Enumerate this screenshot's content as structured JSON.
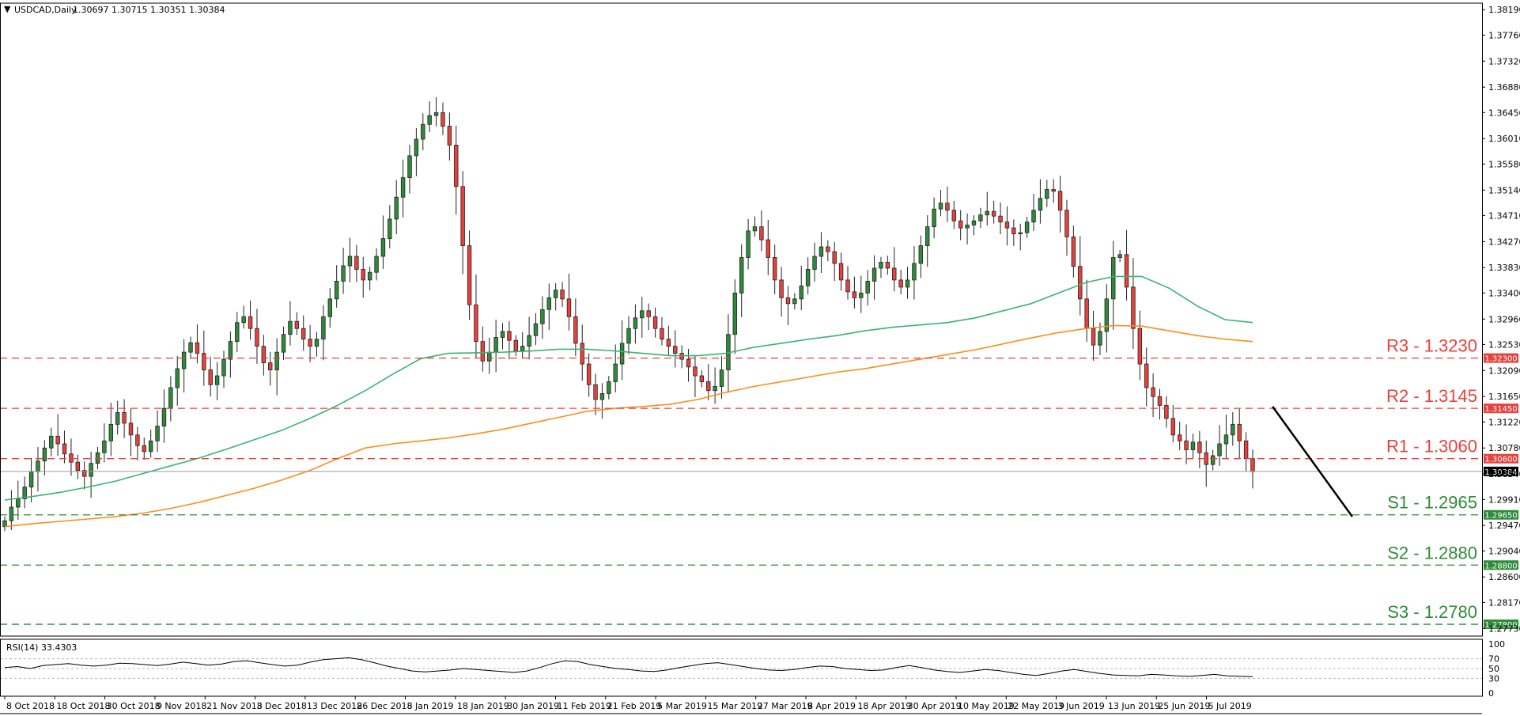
{
  "header": {
    "symbol": "USDCAD,Daily",
    "ohlc": "1.30697 1.30715 1.30351 1.30384"
  },
  "rsi_header": "RSI(14) 33.4303",
  "colors": {
    "bull": "#2e8b3a",
    "bear": "#e8413c",
    "ma_fast": "#3cb371",
    "ma_slow": "#ff8c1a",
    "resistance": "#e8413c",
    "support": "#2e8b3a",
    "trend": "#000000"
  },
  "chart_data": {
    "type": "candlestick",
    "y_range": [
      1.276,
      1.383
    ],
    "y_ticks": [
      "1.38190",
      "1.37760",
      "1.37320",
      "1.36880",
      "1.36450",
      "1.36010",
      "1.35580",
      "1.35140",
      "1.34710",
      "1.34270",
      "1.33830",
      "1.33400",
      "1.32960",
      "1.32530",
      "1.32090",
      "1.31650",
      "1.31220",
      "1.30780",
      "1.30340",
      "1.29910",
      "1.29470",
      "1.29040",
      "1.28600",
      "1.28170",
      "1.27730"
    ],
    "x_labels": [
      "8 Oct 2018",
      "18 Oct 2018",
      "30 Oct 2018",
      "9 Nov 2018",
      "21 Nov 2018",
      "3 Dec 2018",
      "13 Dec 2018",
      "26 Dec 2018",
      "8 Jan 2019",
      "18 Jan 2019",
      "30 Jan 2019",
      "11 Feb 2019",
      "21 Feb 2019",
      "5 Mar 2019",
      "15 Mar 2019",
      "27 Mar 2019",
      "8 Apr 2019",
      "18 Apr 2019",
      "30 Apr 2019",
      "10 May 2019",
      "22 May 2019",
      "3 Jun 2019",
      "13 Jun 2019",
      "25 Jun 2019",
      "5 Jul 2019"
    ],
    "closes": [
      1.2955,
      1.2978,
      1.2992,
      1.3012,
      1.3038,
      1.3056,
      1.3078,
      1.3098,
      1.3085,
      1.3068,
      1.3054,
      1.304,
      1.303,
      1.3052,
      1.307,
      1.309,
      1.3118,
      1.3138,
      1.312,
      1.31,
      1.3082,
      1.3072,
      1.309,
      1.3115,
      1.3145,
      1.318,
      1.3212,
      1.324,
      1.3256,
      1.3238,
      1.321,
      1.3185,
      1.32,
      1.3228,
      1.3258,
      1.329,
      1.33,
      1.328,
      1.325,
      1.3222,
      1.321,
      1.324,
      1.327,
      1.3292,
      1.328,
      1.3262,
      1.325,
      1.3262,
      1.33,
      1.333,
      1.336,
      1.3386,
      1.3402,
      1.338,
      1.3362,
      1.3375,
      1.3402,
      1.3432,
      1.3465,
      1.3502,
      1.3535,
      1.3572,
      1.36,
      1.3625,
      1.364,
      1.3645,
      1.3622,
      1.359,
      1.352,
      1.342,
      1.332,
      1.3258,
      1.3225,
      1.324,
      1.3265,
      1.3275,
      1.326,
      1.3242,
      1.325,
      1.3268,
      1.3288,
      1.3312,
      1.3332,
      1.3345,
      1.333,
      1.33,
      1.3255,
      1.322,
      1.3185,
      1.316,
      1.317,
      1.319,
      1.322,
      1.3255,
      1.328,
      1.3298,
      1.331,
      1.33,
      1.328,
      1.3262,
      1.325,
      1.3238,
      1.3228,
      1.3215,
      1.32,
      1.319,
      1.3175,
      1.3182,
      1.321,
      1.327,
      1.334,
      1.34,
      1.3445,
      1.3452,
      1.343,
      1.34,
      1.3362,
      1.3332,
      1.3322,
      1.333,
      1.3352,
      1.338,
      1.3402,
      1.3418,
      1.341,
      1.339,
      1.3362,
      1.3342,
      1.3332,
      1.334,
      1.336,
      1.3382,
      1.3392,
      1.3382,
      1.3362,
      1.335,
      1.3362,
      1.339,
      1.342,
      1.3452,
      1.3482,
      1.3492,
      1.348,
      1.3462,
      1.345,
      1.3455,
      1.3462,
      1.3472,
      1.3478,
      1.347,
      1.346,
      1.345,
      1.344,
      1.3442,
      1.346,
      1.348,
      1.35,
      1.3515,
      1.3512,
      1.348,
      1.3435,
      1.3385,
      1.333,
      1.328,
      1.3252,
      1.3275,
      1.333,
      1.34,
      1.3405,
      1.335,
      1.328,
      1.322,
      1.318,
      1.3165,
      1.315,
      1.3128,
      1.31,
      1.309,
      1.3075,
      1.3088,
      1.307,
      1.305,
      1.3065,
      1.3085,
      1.31,
      1.3118,
      1.309,
      1.306,
      1.3038
    ],
    "ma_fast": {
      "start": 0,
      "values": [
        1.299,
        1.2996,
        1.3003,
        1.3012,
        1.3022,
        1.3035,
        1.3048,
        1.3061,
        1.3076,
        1.3092,
        1.3108,
        1.3128,
        1.315,
        1.3175,
        1.3203,
        1.3229,
        1.3238,
        1.3239,
        1.324,
        1.3242,
        1.3245,
        1.3245,
        1.3242,
        1.3238,
        1.3234,
        1.3234,
        1.3238,
        1.3248,
        1.3255,
        1.3262,
        1.3268,
        1.3276,
        1.3282,
        1.3286,
        1.329,
        1.3298,
        1.331,
        1.3322,
        1.334,
        1.3358,
        1.3368,
        1.3368,
        1.3348,
        1.3318,
        1.3295,
        1.329
      ]
    },
    "ma_slow": {
      "start": 0,
      "values": [
        1.2945,
        1.295,
        1.2954,
        1.2958,
        1.2962,
        1.2968,
        1.2976,
        1.2986,
        1.2998,
        1.301,
        1.3024,
        1.304,
        1.306,
        1.3078,
        1.3085,
        1.309,
        1.3095,
        1.3102,
        1.311,
        1.312,
        1.313,
        1.314,
        1.3145,
        1.3148,
        1.3152,
        1.316,
        1.3172,
        1.3182,
        1.319,
        1.3198,
        1.3206,
        1.3212,
        1.322,
        1.3228,
        1.3236,
        1.3244,
        1.3254,
        1.3264,
        1.3273,
        1.328,
        1.3285,
        1.3284,
        1.3276,
        1.3268,
        1.3262,
        1.3258
      ]
    },
    "levels": [
      {
        "id": "R3",
        "label": "R3 - 1.3230",
        "value": 1.323,
        "badge": "1.32300",
        "kind": "resistance"
      },
      {
        "id": "R2",
        "label": "R2 - 1.3145",
        "value": 1.3145,
        "badge": "1.31450",
        "kind": "resistance"
      },
      {
        "id": "R1",
        "label": "R1 - 1.3060",
        "value": 1.306,
        "badge": "1.30600",
        "kind": "resistance"
      },
      {
        "id": "S1",
        "label": "S1 -  1.2965",
        "value": 1.2965,
        "badge": "1.29650",
        "kind": "support"
      },
      {
        "id": "S2",
        "label": "S2 - 1.2880",
        "value": 1.288,
        "badge": "1.28800",
        "kind": "support"
      },
      {
        "id": "S3",
        "label": "S3 - 1.2780",
        "value": 1.278,
        "badge": "1.27800",
        "kind": "support"
      }
    ],
    "current_price": {
      "value": 1.30384,
      "badge": "1.30384"
    },
    "trendline": [
      {
        "i": 191,
        "p": 1.3148
      },
      {
        "i": 203,
        "p": 1.2962
      }
    ],
    "rsi": {
      "ticks": [
        "100",
        "70",
        "50",
        "30",
        "0"
      ],
      "levels": [
        70,
        50,
        30
      ],
      "values": [
        52,
        54,
        50,
        56,
        58,
        60,
        57,
        55,
        57,
        61,
        60,
        58,
        56,
        59,
        63,
        60,
        57,
        59,
        64,
        66,
        62,
        58,
        55,
        57,
        63,
        68,
        70,
        72,
        68,
        62,
        55,
        50,
        45,
        43,
        45,
        47,
        50,
        48,
        46,
        44,
        42,
        45,
        52,
        60,
        66,
        64,
        58,
        54,
        50,
        48,
        45,
        44,
        47,
        52,
        56,
        60,
        62,
        58,
        54,
        50,
        47,
        46,
        48,
        52,
        55,
        54,
        50,
        48,
        46,
        47,
        52,
        56,
        52,
        47,
        44,
        42,
        45,
        48,
        46,
        42,
        38,
        36,
        40,
        45,
        48,
        44,
        40,
        37,
        36,
        35,
        38,
        37,
        35,
        34,
        36,
        38,
        35,
        34,
        33.4
      ]
    }
  }
}
